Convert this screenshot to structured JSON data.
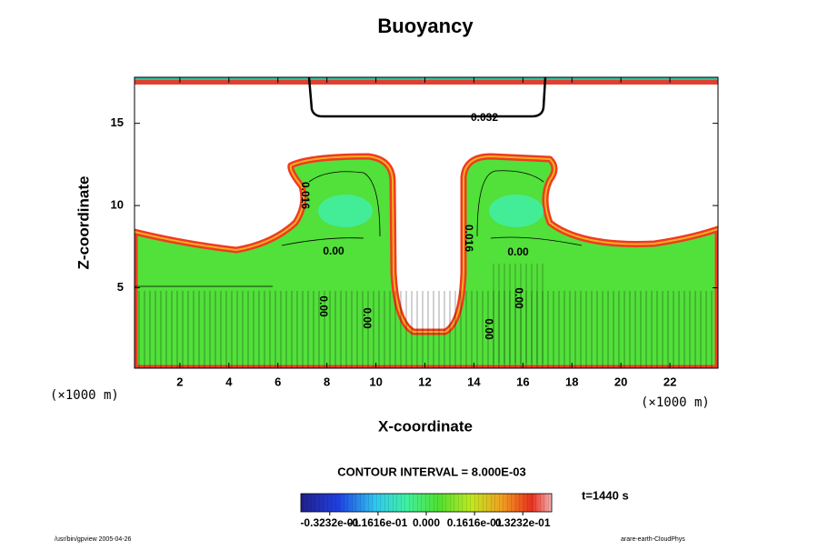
{
  "chart_data": {
    "type": "contour",
    "title": "Buoyancy",
    "xlabel": "X-coordinate",
    "ylabel": "Z-coordinate",
    "x_unit": "(×1000 m)",
    "y_unit": "(×1000 m)",
    "xlim": [
      0,
      24
    ],
    "ylim": [
      0,
      17.8
    ],
    "xticks": [
      2,
      4,
      6,
      8,
      10,
      12,
      14,
      16,
      18,
      20,
      22
    ],
    "yticks": [
      5,
      10,
      15
    ],
    "contour_interval": "CONTOUR INTERVAL = 8.000E-03",
    "time": "t=1440 s",
    "colorbar": {
      "clim": [
        -0.042,
        0.042
      ],
      "ticks": [
        {
          "value": -0.03232,
          "label": "-0.3232e-01"
        },
        {
          "value": -0.01616,
          "label": "-0.1616e-01"
        },
        {
          "value": 0,
          "label": "0.000"
        },
        {
          "value": 0.01616,
          "label": "0.1616e-01"
        },
        {
          "value": 0.03232,
          "label": "0.3232e-01"
        }
      ]
    },
    "contour_labels": [
      "0.00",
      "0.00",
      "0.00",
      "0.00",
      "0.00",
      "0.00",
      "0.016",
      "0.016",
      "0.032"
    ]
  },
  "footer": {
    "left": "/usr/bin/gpview 2005-04-26",
    "right": "arare-earth-CloudPhys"
  }
}
